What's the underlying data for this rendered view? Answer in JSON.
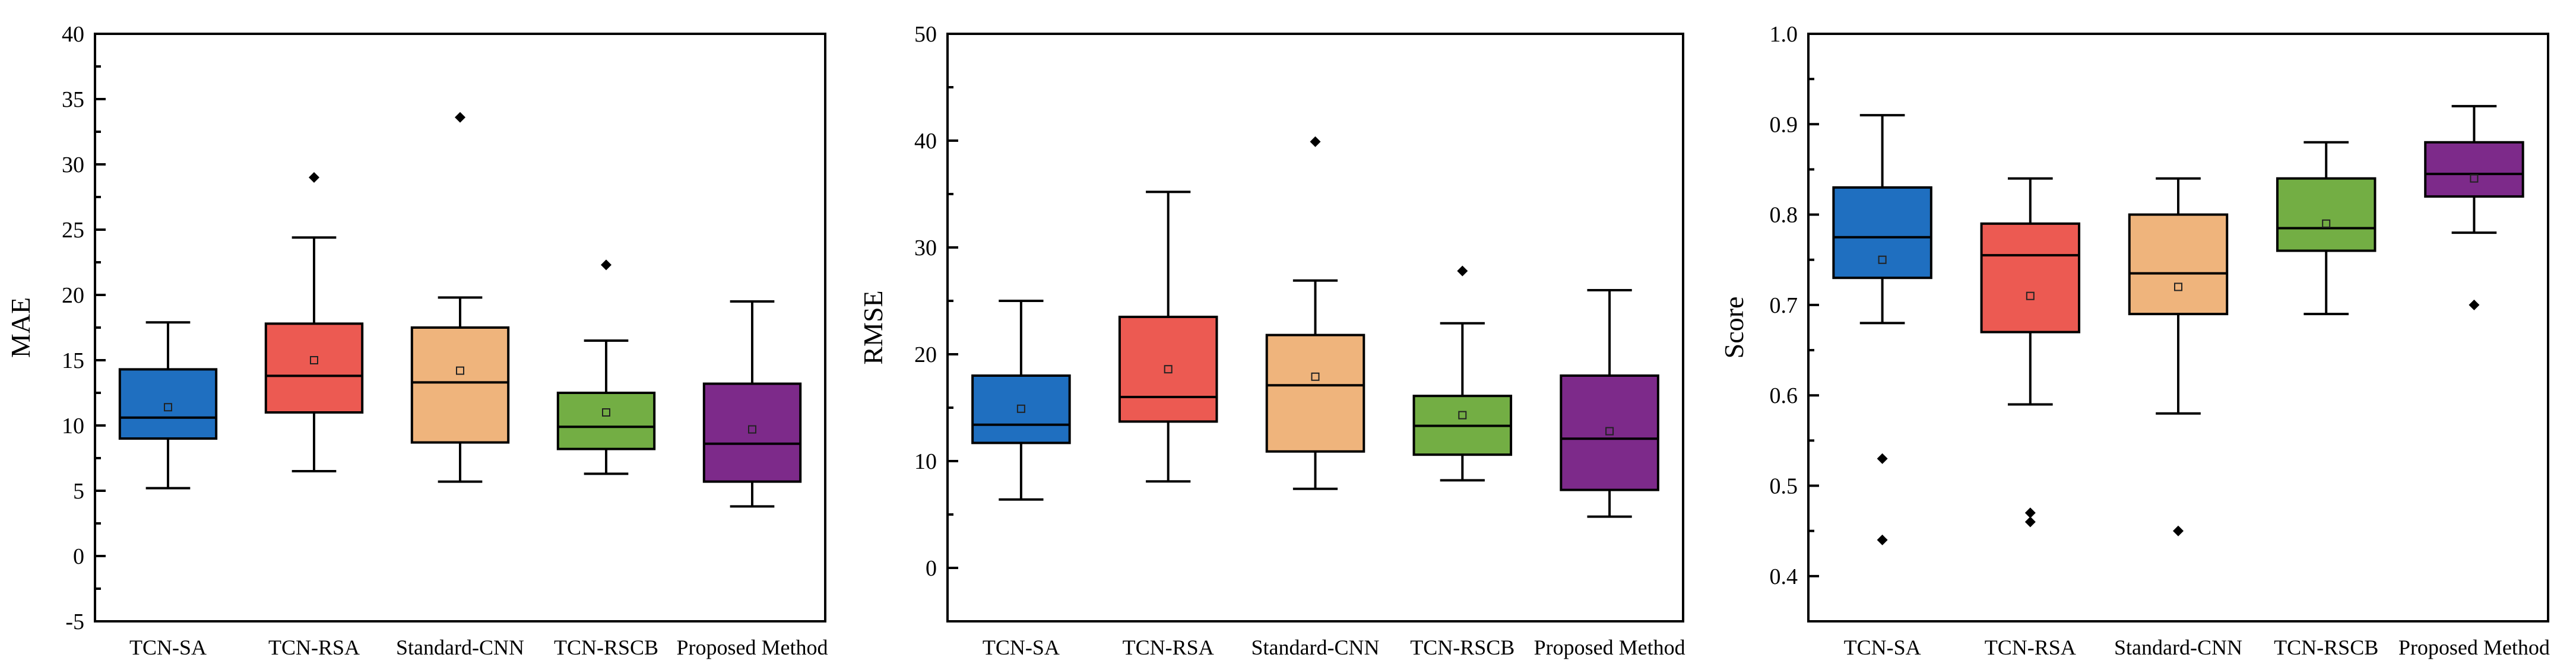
{
  "chart_data": [
    {
      "type": "box",
      "ylabel": "MAE",
      "ylim": [
        -5,
        40
      ],
      "yticks": [
        -5,
        0,
        5,
        10,
        15,
        20,
        25,
        30,
        35,
        40
      ],
      "yticklabels": [
        "-5",
        "0",
        "5",
        "10",
        "15",
        "20",
        "25",
        "30",
        "35",
        "40"
      ],
      "categories": [
        "TCN-SA",
        "TCN-RSA",
        "Standard-CNN",
        "TCN-RSCB",
        "Proposed Method"
      ],
      "boxes": [
        {
          "min": 5.2,
          "q1": 9.0,
          "median": 10.6,
          "q3": 14.3,
          "max": 17.9,
          "mean": 11.4,
          "outliers": []
        },
        {
          "min": 6.5,
          "q1": 11.0,
          "median": 13.8,
          "q3": 17.8,
          "max": 24.4,
          "mean": 15.0,
          "outliers": [
            29.0
          ]
        },
        {
          "min": 5.7,
          "q1": 8.7,
          "median": 13.3,
          "q3": 17.5,
          "max": 19.8,
          "mean": 14.2,
          "outliers": [
            33.6
          ]
        },
        {
          "min": 6.3,
          "q1": 8.2,
          "median": 9.9,
          "q3": 12.5,
          "max": 16.5,
          "mean": 11.0,
          "outliers": [
            22.3
          ]
        },
        {
          "min": 3.8,
          "q1": 5.7,
          "median": 8.6,
          "q3": 13.2,
          "max": 19.5,
          "mean": 9.7,
          "outliers": []
        }
      ]
    },
    {
      "type": "box",
      "ylabel": "RMSE",
      "ylim": [
        -5,
        50
      ],
      "yticks": [
        0,
        10,
        20,
        30,
        40,
        50
      ],
      "yticklabels": [
        "0",
        "10",
        "20",
        "30",
        "40",
        "50"
      ],
      "categories": [
        "TCN-SA",
        "TCN-RSA",
        "Standard-CNN",
        "TCN-RSCB",
        "Proposed Method"
      ],
      "boxes": [
        {
          "min": 6.4,
          "q1": 11.7,
          "median": 13.4,
          "q3": 18.0,
          "max": 25.0,
          "mean": 14.9,
          "outliers": []
        },
        {
          "min": 8.1,
          "q1": 13.7,
          "median": 16.0,
          "q3": 23.5,
          "max": 35.2,
          "mean": 18.6,
          "outliers": []
        },
        {
          "min": 7.4,
          "q1": 10.9,
          "median": 17.1,
          "q3": 21.8,
          "max": 26.9,
          "mean": 17.9,
          "outliers": [
            39.9
          ]
        },
        {
          "min": 8.2,
          "q1": 10.6,
          "median": 13.3,
          "q3": 16.1,
          "max": 22.9,
          "mean": 14.3,
          "outliers": [
            27.8
          ]
        },
        {
          "min": 4.8,
          "q1": 7.3,
          "median": 12.1,
          "q3": 18.0,
          "max": 26.0,
          "mean": 12.8,
          "outliers": []
        }
      ]
    },
    {
      "type": "box",
      "ylabel": "Score",
      "ylim": [
        0.35,
        1.0
      ],
      "yticks": [
        0.4,
        0.5,
        0.6,
        0.7,
        0.8,
        0.9,
        1.0
      ],
      "yticklabels": [
        "0.4",
        "0.5",
        "0.6",
        "0.7",
        "0.8",
        "0.9",
        "1.0"
      ],
      "categories": [
        "TCN-SA",
        "TCN-RSA",
        "Standard-CNN",
        "TCN-RSCB",
        "Proposed Method"
      ],
      "boxes": [
        {
          "min": 0.68,
          "q1": 0.73,
          "median": 0.775,
          "q3": 0.83,
          "max": 0.91,
          "mean": 0.75,
          "outliers": [
            0.53,
            0.44
          ]
        },
        {
          "min": 0.59,
          "q1": 0.67,
          "median": 0.755,
          "q3": 0.79,
          "max": 0.84,
          "mean": 0.71,
          "outliers": [
            0.47,
            0.46
          ]
        },
        {
          "min": 0.58,
          "q1": 0.69,
          "median": 0.735,
          "q3": 0.8,
          "max": 0.84,
          "mean": 0.72,
          "outliers": [
            0.45
          ]
        },
        {
          "min": 0.69,
          "q1": 0.76,
          "median": 0.785,
          "q3": 0.84,
          "max": 0.88,
          "mean": 0.79,
          "outliers": []
        },
        {
          "min": 0.78,
          "q1": 0.82,
          "median": 0.845,
          "q3": 0.88,
          "max": 0.92,
          "mean": 0.84,
          "outliers": [
            0.7
          ]
        }
      ]
    }
  ],
  "colors": {
    "series": [
      "#1f6fc0",
      "#ec5a52",
      "#efb47c",
      "#73ae44",
      "#7d2a8a"
    ],
    "axis": "#000000"
  }
}
